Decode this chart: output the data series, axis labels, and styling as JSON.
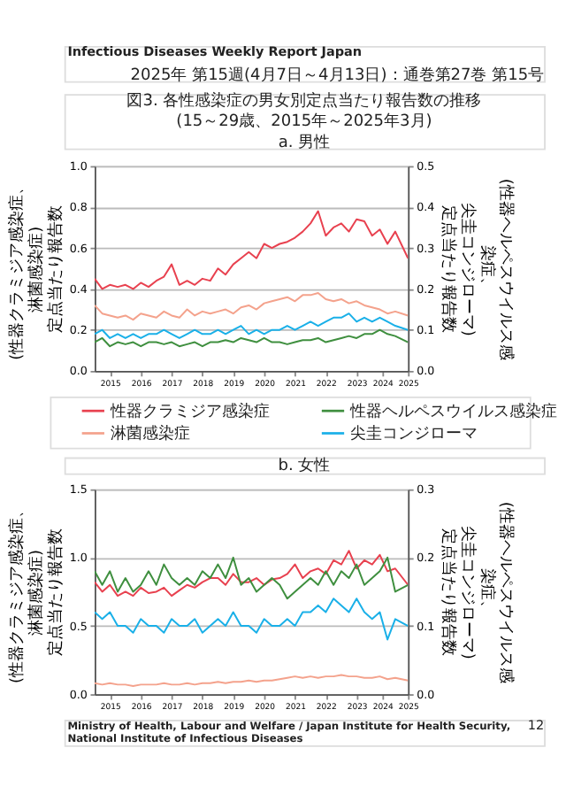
{
  "chart_data": [
    {
      "type": "line",
      "title": "図3. 各性感染症の男女別定点当たり報告数の推移",
      "subtitle": "(15～29歳、2015年～2025年3月)",
      "annotations": [
        "Infectious Diseases Weekly Report Japan",
        "2025年 第15週(4月7日～4月13日)：通巻第27巻 第15号",
        "a. 男性"
      ],
      "ylabel": "(性器クラミジア感染症、淋菌感染症)定点当たり報告数",
      "y2label": "(性器ヘルペスウイルス感染症、尖圭コンジローマ)定点当たり報告数",
      "x": [
        "2015-01",
        "2015-04",
        "2015-07",
        "2015-10",
        "2016-01",
        "2016-04",
        "2016-07",
        "2016-10",
        "2017-01",
        "2017-04",
        "2017-07",
        "2017-10",
        "2018-01",
        "2018-04",
        "2018-07",
        "2018-10",
        "2019-01",
        "2019-04",
        "2019-07",
        "2019-10",
        "2020-01",
        "2020-04",
        "2020-07",
        "2020-10",
        "2021-01",
        "2021-04",
        "2021-07",
        "2021-10",
        "2022-01",
        "2022-04",
        "2022-07",
        "2022-10",
        "2023-01",
        "2023-04",
        "2023-07",
        "2023-10",
        "2024-01",
        "2024-04",
        "2024-07",
        "2024-10",
        "2025-03"
      ],
      "xlim": [
        "2015-01",
        "2025-03"
      ],
      "xticks": [
        {
          "value": "2015-07",
          "label": "2015"
        },
        {
          "value": "2016-07",
          "label": "2016"
        },
        {
          "value": "2017-07",
          "label": "2017"
        },
        {
          "value": "2018-07",
          "label": "2018"
        },
        {
          "value": "2019-07",
          "label": "2019"
        },
        {
          "value": "2020-07",
          "label": "2020"
        },
        {
          "value": "2021-07",
          "label": "2021"
        },
        {
          "value": "2022-07",
          "label": "2022"
        },
        {
          "value": "2023-07",
          "label": "2023"
        },
        {
          "value": "2024-05",
          "label": "2024"
        },
        {
          "value": "2025-03",
          "label": "2025"
        }
      ],
      "ylim": [
        0,
        1.0
      ],
      "yticks": [
        {
          "value": 0,
          "label": "0.0"
        },
        {
          "value": 0.2,
          "label": "0.2"
        },
        {
          "value": 0.4,
          "label": "0.4"
        },
        {
          "value": 0.6,
          "label": "0.6"
        },
        {
          "value": 0.8,
          "label": "0.8"
        },
        {
          "value": 1.0,
          "label": "1.0"
        }
      ],
      "y2lim": [
        0,
        0.5
      ],
      "y2ticks": [
        {
          "value": 0,
          "label": "0.0"
        },
        {
          "value": 0.1,
          "label": "0.1"
        },
        {
          "value": 0.2,
          "label": "0.2"
        },
        {
          "value": 0.3,
          "label": "0.3"
        },
        {
          "value": 0.4,
          "label": "0.4"
        },
        {
          "value": 0.5,
          "label": "0.5"
        }
      ],
      "grid": "y",
      "legend": "bottom",
      "marker": "none",
      "line_style": "solid",
      "series": [
        {
          "name": "性器クラミジア感染症",
          "color": "#e8414f",
          "values": [
            0.45,
            0.4,
            0.42,
            0.41,
            0.42,
            0.4,
            0.43,
            0.41,
            0.44,
            0.46,
            0.52,
            0.42,
            0.44,
            0.42,
            0.45,
            0.44,
            0.5,
            0.47,
            0.52,
            0.55,
            0.58,
            0.55,
            0.62,
            0.6,
            0.62,
            0.63,
            0.65,
            0.68,
            0.72,
            0.78,
            0.66,
            0.7,
            0.72,
            0.68,
            0.74,
            0.73,
            0.66,
            0.69,
            0.62,
            0.68,
            0.55
          ]
        },
        {
          "name": "淋菌感染症",
          "color": "#f4a28c",
          "values": [
            0.32,
            0.28,
            0.27,
            0.26,
            0.27,
            0.25,
            0.28,
            0.27,
            0.26,
            0.29,
            0.27,
            0.26,
            0.3,
            0.27,
            0.29,
            0.28,
            0.29,
            0.3,
            0.28,
            0.31,
            0.32,
            0.3,
            0.33,
            0.34,
            0.35,
            0.36,
            0.34,
            0.37,
            0.37,
            0.38,
            0.35,
            0.34,
            0.35,
            0.33,
            0.34,
            0.32,
            0.31,
            0.3,
            0.28,
            0.29,
            0.27
          ]
        },
        {
          "name": "性器ヘルペスウイルス感染症",
          "color": "#3f8f3f",
          "axis": "y2",
          "values": [
            0.07,
            0.08,
            0.06,
            0.07,
            0.065,
            0.07,
            0.06,
            0.07,
            0.07,
            0.065,
            0.07,
            0.06,
            0.065,
            0.07,
            0.06,
            0.07,
            0.07,
            0.075,
            0.07,
            0.08,
            0.075,
            0.07,
            0.08,
            0.07,
            0.07,
            0.065,
            0.07,
            0.075,
            0.075,
            0.08,
            0.07,
            0.075,
            0.08,
            0.085,
            0.08,
            0.09,
            0.09,
            0.1,
            0.09,
            0.085,
            0.07
          ]
        },
        {
          "name": "尖圭コンジローマ",
          "color": "#1ab0e8",
          "axis": "y2",
          "values": [
            0.09,
            0.1,
            0.08,
            0.09,
            0.08,
            0.09,
            0.08,
            0.09,
            0.09,
            0.1,
            0.09,
            0.08,
            0.09,
            0.1,
            0.09,
            0.09,
            0.1,
            0.09,
            0.1,
            0.11,
            0.09,
            0.1,
            0.09,
            0.1,
            0.1,
            0.11,
            0.1,
            0.11,
            0.12,
            0.11,
            0.12,
            0.13,
            0.13,
            0.14,
            0.12,
            0.13,
            0.12,
            0.13,
            0.12,
            0.11,
            0.1
          ]
        }
      ]
    },
    {
      "type": "line",
      "title": "b. 女性",
      "annotations": [
        "Ministry of Health, Labour and Welfare / Japan Institute for Health Security, National Institute of Infectious Diseases",
        "12"
      ],
      "ylabel": "(性器クラミジア感染症、淋菌感染症)定点当たり報告数",
      "y2label": "(性器ヘルペスウイルス感染症、尖圭コンジローマ)定点当たり報告数",
      "x": [
        "2015-01",
        "2015-04",
        "2015-07",
        "2015-10",
        "2016-01",
        "2016-04",
        "2016-07",
        "2016-10",
        "2017-01",
        "2017-04",
        "2017-07",
        "2017-10",
        "2018-01",
        "2018-04",
        "2018-07",
        "2018-10",
        "2019-01",
        "2019-04",
        "2019-07",
        "2019-10",
        "2020-01",
        "2020-04",
        "2020-07",
        "2020-10",
        "2021-01",
        "2021-04",
        "2021-07",
        "2021-10",
        "2022-01",
        "2022-04",
        "2022-07",
        "2022-10",
        "2023-01",
        "2023-04",
        "2023-07",
        "2023-10",
        "2024-01",
        "2024-04",
        "2024-07",
        "2024-10",
        "2025-03"
      ],
      "xlim": [
        "2015-01",
        "2025-03"
      ],
      "xticks": [
        {
          "value": "2015-07",
          "label": "2015"
        },
        {
          "value": "2016-07",
          "label": "2016"
        },
        {
          "value": "2017-07",
          "label": "2017"
        },
        {
          "value": "2018-07",
          "label": "2018"
        },
        {
          "value": "2019-07",
          "label": "2019"
        },
        {
          "value": "2020-07",
          "label": "2020"
        },
        {
          "value": "2021-07",
          "label": "2021"
        },
        {
          "value": "2022-07",
          "label": "2022"
        },
        {
          "value": "2023-07",
          "label": "2023"
        },
        {
          "value": "2024-05",
          "label": "2024"
        },
        {
          "value": "2025-03",
          "label": "2025"
        }
      ],
      "ylim": [
        0,
        1.5
      ],
      "yticks": [
        {
          "value": 0,
          "label": "0.0"
        },
        {
          "value": 0.5,
          "label": "0.5"
        },
        {
          "value": 1.0,
          "label": "1.0"
        },
        {
          "value": 1.5,
          "label": "1.5"
        }
      ],
      "y2lim": [
        0,
        0.3
      ],
      "y2ticks": [
        {
          "value": 0,
          "label": "0.0"
        },
        {
          "value": 0.1,
          "label": "0.1"
        },
        {
          "value": 0.2,
          "label": "0.2"
        },
        {
          "value": 0.3,
          "label": "0.3"
        }
      ],
      "grid": "y",
      "marker": "none",
      "line_style": "solid",
      "series": [
        {
          "color": "#e8414f",
          "values": [
            0.82,
            0.75,
            0.8,
            0.72,
            0.75,
            0.72,
            0.78,
            0.74,
            0.75,
            0.78,
            0.72,
            0.76,
            0.8,
            0.78,
            0.82,
            0.85,
            0.85,
            0.8,
            0.88,
            0.82,
            0.82,
            0.85,
            0.8,
            0.84,
            0.85,
            0.88,
            0.95,
            0.85,
            0.9,
            0.92,
            0.88,
            0.98,
            0.95,
            1.05,
            0.92,
            0.98,
            0.95,
            1.02,
            0.9,
            0.92,
            0.8
          ]
        },
        {
          "color": "#f4a28c",
          "values": [
            0.08,
            0.07,
            0.08,
            0.07,
            0.07,
            0.06,
            0.07,
            0.07,
            0.07,
            0.08,
            0.07,
            0.07,
            0.08,
            0.07,
            0.08,
            0.08,
            0.09,
            0.08,
            0.09,
            0.09,
            0.1,
            0.09,
            0.1,
            0.1,
            0.11,
            0.12,
            0.13,
            0.12,
            0.13,
            0.12,
            0.13,
            0.13,
            0.14,
            0.13,
            0.13,
            0.12,
            0.12,
            0.13,
            0.11,
            0.12,
            0.1
          ]
        },
        {
          "color": "#3f8f3f",
          "axis": "y2",
          "values": [
            0.18,
            0.16,
            0.18,
            0.15,
            0.17,
            0.15,
            0.16,
            0.18,
            0.16,
            0.19,
            0.17,
            0.16,
            0.17,
            0.16,
            0.18,
            0.17,
            0.19,
            0.17,
            0.2,
            0.16,
            0.17,
            0.15,
            0.16,
            0.17,
            0.16,
            0.14,
            0.15,
            0.16,
            0.17,
            0.16,
            0.18,
            0.16,
            0.18,
            0.17,
            0.19,
            0.16,
            0.17,
            0.18,
            0.2,
            0.15,
            0.16
          ]
        },
        {
          "color": "#1ab0e8",
          "axis": "y2",
          "values": [
            0.12,
            0.11,
            0.12,
            0.1,
            0.1,
            0.09,
            0.11,
            0.1,
            0.1,
            0.09,
            0.11,
            0.1,
            0.1,
            0.11,
            0.09,
            0.1,
            0.11,
            0.1,
            0.12,
            0.1,
            0.1,
            0.09,
            0.11,
            0.1,
            0.1,
            0.11,
            0.1,
            0.12,
            0.12,
            0.13,
            0.12,
            0.14,
            0.13,
            0.12,
            0.14,
            0.12,
            0.11,
            0.12,
            0.08,
            0.11,
            0.1
          ]
        }
      ]
    }
  ]
}
